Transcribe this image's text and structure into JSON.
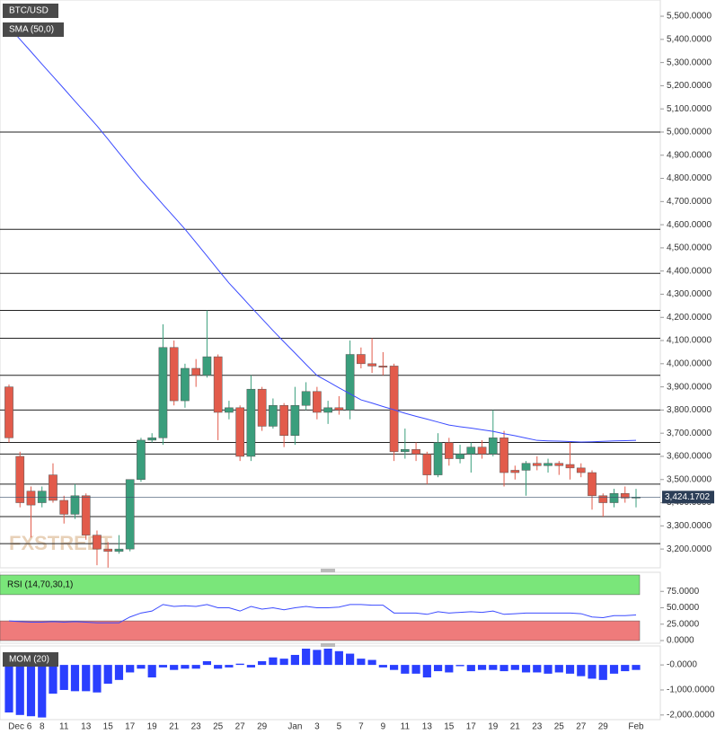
{
  "chart_data": [
    {
      "type": "candlestick",
      "title": "BTC/USD",
      "watermark": "FXSTREET",
      "categories": [
        null,
        "Dec 6",
        null,
        "8",
        null,
        "11",
        null,
        "13",
        null,
        "15",
        null,
        "17",
        null,
        "19",
        null,
        "21",
        null,
        "23",
        null,
        "25",
        null,
        "27",
        null,
        "29",
        null,
        null,
        "Jan",
        null,
        "3",
        null,
        "5",
        null,
        "7",
        null,
        "9",
        null,
        "11",
        null,
        "13",
        null,
        "15",
        null,
        "17",
        null,
        "19",
        null,
        "21",
        null,
        "23",
        null,
        "25",
        null,
        "27",
        null,
        "29",
        null,
        null,
        "Feb"
      ],
      "open": [
        3900,
        3600,
        3450,
        3400,
        3520,
        3410,
        3350,
        3430,
        3260,
        3200,
        3190,
        3200,
        3500,
        3670,
        3680,
        4070,
        3840,
        3980,
        3950,
        4030,
        3790,
        3810,
        3600,
        3890,
        3730,
        3820,
        3690,
        3820,
        3880,
        3790,
        3810,
        3800,
        4040,
        4000,
        3990,
        3990,
        3620,
        3630,
        3610,
        3520,
        3660,
        3590,
        3610,
        3640,
        3610,
        3680,
        3540,
        3540,
        3570,
        3560,
        3570,
        3565,
        3550,
        3530,
        3430,
        3400,
        3440,
        3420
      ],
      "high": [
        3910,
        3620,
        3470,
        3470,
        3570,
        3430,
        3480,
        3440,
        3280,
        3230,
        3260,
        3500,
        3680,
        3700,
        4170,
        4100,
        4000,
        4020,
        4230,
        4040,
        3840,
        3820,
        3950,
        3900,
        3850,
        3830,
        3900,
        3920,
        3900,
        3840,
        3860,
        4100,
        4070,
        4110,
        4050,
        4000,
        3720,
        3660,
        3620,
        3700,
        3680,
        3650,
        3660,
        3670,
        3800,
        3710,
        3560,
        3580,
        3600,
        3590,
        3580,
        3660,
        3570,
        3540,
        3440,
        3460,
        3470,
        3460
      ],
      "low": [
        3660,
        3380,
        3250,
        3380,
        3400,
        3310,
        3330,
        3240,
        3130,
        3120,
        3180,
        3190,
        3490,
        3660,
        3650,
        3820,
        3810,
        3900,
        3940,
        3670,
        3760,
        3580,
        3580,
        3710,
        3720,
        3640,
        3650,
        3800,
        3760,
        3740,
        3780,
        3760,
        3980,
        3960,
        3950,
        3580,
        3590,
        3580,
        3480,
        3510,
        3560,
        3570,
        3530,
        3590,
        3600,
        3470,
        3500,
        3430,
        3540,
        3530,
        3520,
        3500,
        3510,
        3370,
        3340,
        3380,
        3400,
        3380
      ],
      "close": [
        3680,
        3400,
        3390,
        3450,
        3410,
        3350,
        3430,
        3260,
        3200,
        3190,
        3200,
        3500,
        3670,
        3680,
        4070,
        3840,
        3980,
        3950,
        4030,
        3790,
        3810,
        3600,
        3890,
        3730,
        3820,
        3690,
        3820,
        3880,
        3790,
        3810,
        3800,
        4040,
        4000,
        3990,
        3985,
        3620,
        3630,
        3610,
        3520,
        3660,
        3590,
        3610,
        3640,
        3610,
        3680,
        3530,
        3530,
        3570,
        3560,
        3570,
        3560,
        3550,
        3530,
        3430,
        3400,
        3440,
        3420,
        3424.1702
      ],
      "up_color": "#3a9e7c",
      "down_color": "#e25b4b",
      "sma": {
        "name": "SMA (50,0)",
        "color": "#3b4bff",
        "values": [
          5454,
          5400,
          5347,
          5293,
          5240,
          5187,
          5133,
          5080,
          5027,
          4969,
          4910,
          4852,
          4794,
          4741,
          4687,
          4634,
          4581,
          4523,
          4465,
          4406,
          4348,
          4297,
          4245,
          4194,
          4143,
          4094,
          4046,
          3997,
          3949,
          3923,
          3896,
          3870,
          3844,
          3830,
          3815,
          3801,
          3786,
          3773,
          3761,
          3748,
          3735,
          3728,
          3722,
          3715,
          3708,
          3698,
          3689,
          3679,
          3669,
          3667,
          3666,
          3664,
          3662,
          3663,
          3665,
          3667,
          3668,
          3669
        ]
      },
      "levels": [
        5000,
        4580,
        4390,
        4230,
        4110,
        3950,
        3800,
        3660,
        3610,
        3480,
        3340,
        3223
      ],
      "last_price": {
        "value": 3424.1702,
        "label": "3,424.1702"
      },
      "ylim": [
        3119,
        5570
      ],
      "yticks": [
        {
          "value": 3200,
          "label": "3,200.0000"
        },
        {
          "value": 3300,
          "label": "3,300.0000"
        },
        {
          "value": 3400,
          "label": "3,400.0000"
        },
        {
          "value": 3500,
          "label": "3,500.0000"
        },
        {
          "value": 3600,
          "label": "3,600.0000"
        },
        {
          "value": 3700,
          "label": "3,700.0000"
        },
        {
          "value": 3800,
          "label": "3,800.0000"
        },
        {
          "value": 3900,
          "label": "3,900.0000"
        },
        {
          "value": 4000,
          "label": "4,000.0000"
        },
        {
          "value": 4100,
          "label": "4,100.0000"
        },
        {
          "value": 4200,
          "label": "4,200.0000"
        },
        {
          "value": 4300,
          "label": "4,300.0000"
        },
        {
          "value": 4400,
          "label": "4,400.0000"
        },
        {
          "value": 4500,
          "label": "4,500.0000"
        },
        {
          "value": 4600,
          "label": "4,600.0000"
        },
        {
          "value": 4700,
          "label": "4,700.0000"
        },
        {
          "value": 4800,
          "label": "4,800.0000"
        },
        {
          "value": 4900,
          "label": "4,900.0000"
        },
        {
          "value": 5000,
          "label": "5,000.0000"
        },
        {
          "value": 5100,
          "label": "5,100.0000"
        },
        {
          "value": 5200,
          "label": "5,200.0000"
        },
        {
          "value": 5300,
          "label": "5,300.0000"
        },
        {
          "value": 5400,
          "label": "5,400.0000"
        },
        {
          "value": 5500,
          "label": "5,500.0000"
        }
      ]
    },
    {
      "type": "line",
      "title": "RSI (14,70,30,1)",
      "color": "#3b4bff",
      "values": [
        30,
        29,
        28,
        28,
        29,
        28,
        29,
        28,
        27,
        27,
        27,
        36,
        42,
        45,
        55,
        52,
        53,
        52,
        55,
        50,
        50,
        45,
        52,
        48,
        50,
        47,
        50,
        52,
        50,
        50,
        51,
        55,
        55,
        54,
        54,
        42,
        42,
        42,
        40,
        44,
        42,
        43,
        44,
        43,
        45,
        40,
        41,
        42,
        42,
        42,
        42,
        42,
        41,
        36,
        35,
        38,
        38,
        39
      ],
      "overbought": 70,
      "oversold": 30,
      "overbought_color": "#7ae67a",
      "oversold_color": "#ef7b7b",
      "ylim": [
        0,
        100
      ],
      "yticks": [
        {
          "value": 75,
          "label": "75.0000"
        },
        {
          "value": 50,
          "label": "50.0000"
        },
        {
          "value": 25,
          "label": "25.0000"
        },
        {
          "value": 0,
          "label": "0.0000"
        }
      ]
    },
    {
      "type": "bar",
      "title": "MOM (20)",
      "color": "#2a3fff",
      "values": [
        -1900,
        -2000,
        -2050,
        -2100,
        -1150,
        -1000,
        -1050,
        -1050,
        -1100,
        -750,
        -600,
        -300,
        -150,
        -500,
        -100,
        -200,
        -150,
        -150,
        150,
        -150,
        -100,
        50,
        -100,
        150,
        300,
        250,
        400,
        650,
        600,
        650,
        550,
        450,
        250,
        200,
        -100,
        -200,
        -350,
        -350,
        -500,
        -250,
        -300,
        -50,
        -250,
        -200,
        -200,
        -250,
        -200,
        -300,
        -300,
        -350,
        -300,
        -350,
        -450,
        -550,
        -600,
        -350,
        -250,
        -200
      ],
      "ylim": [
        -2150,
        650
      ],
      "yticks": [
        {
          "value": 0,
          "label": "-0.0000"
        },
        {
          "value": -1000,
          "label": "-1,000.0000"
        },
        {
          "value": -2000,
          "label": "-2,000.0000"
        }
      ]
    }
  ]
}
